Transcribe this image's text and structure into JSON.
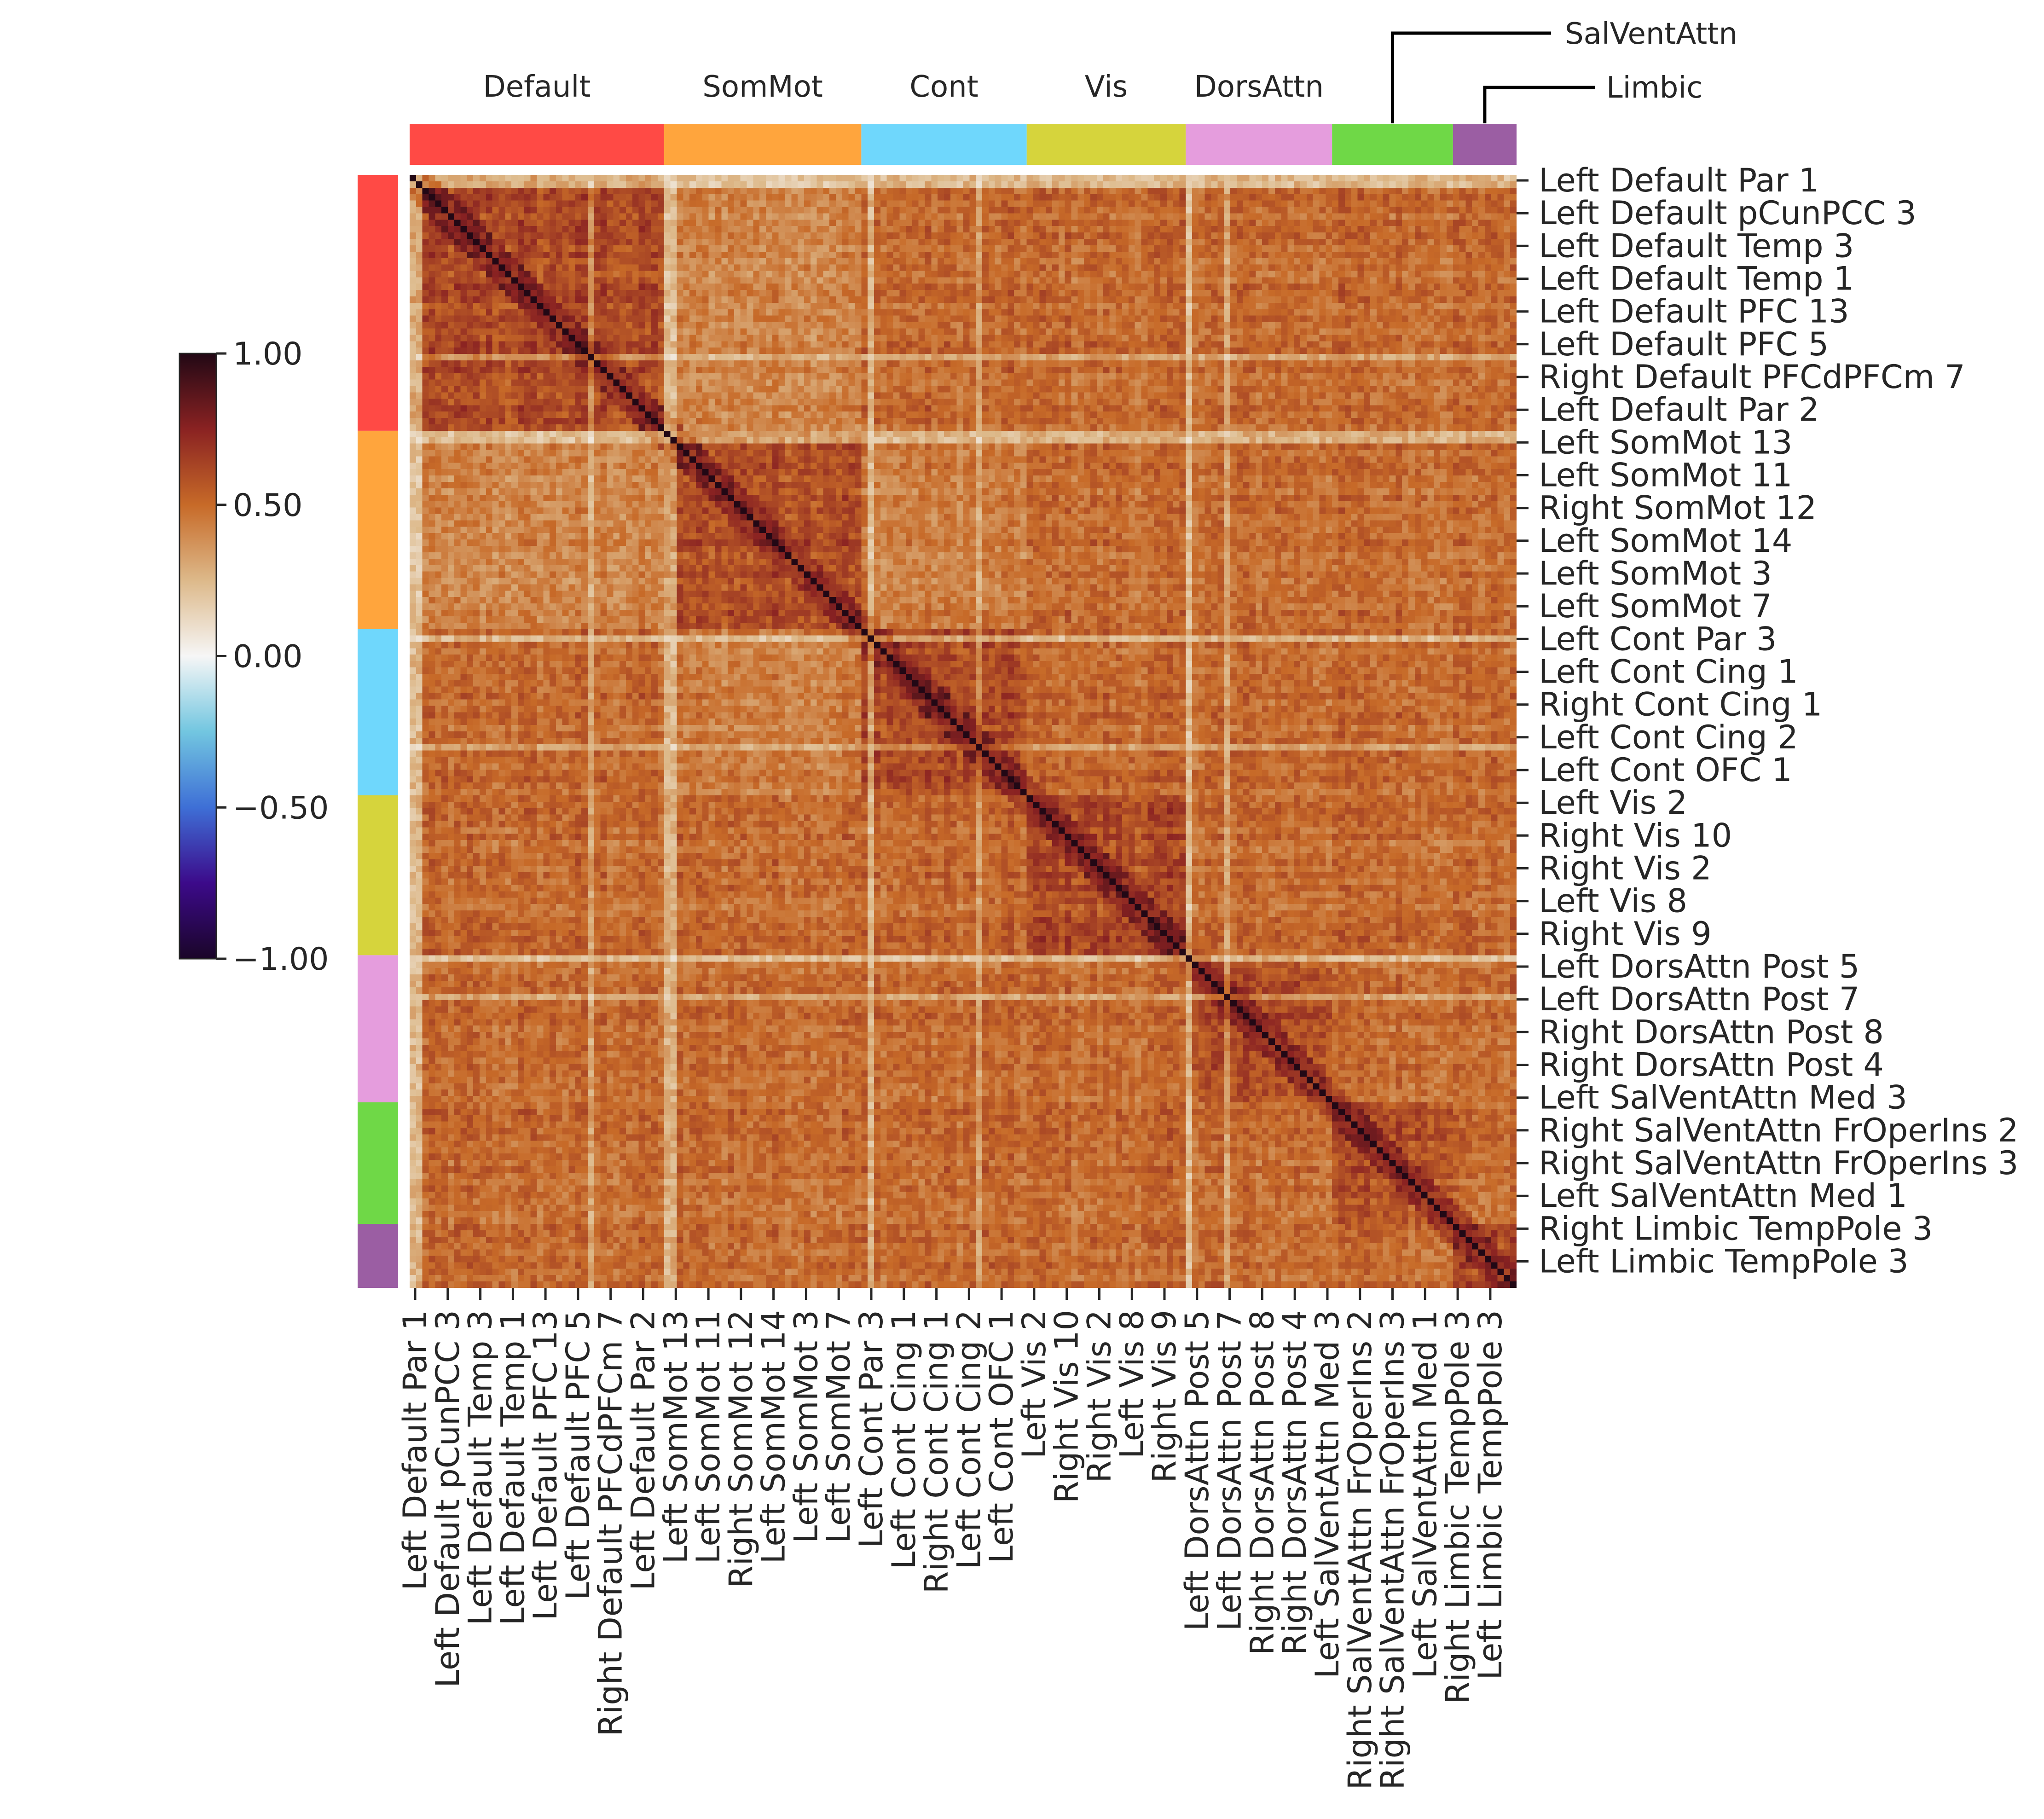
{
  "chart_data": {
    "type": "heatmap",
    "title": "",
    "colormap": {
      "vmin": -1.0,
      "vmax": 1.0,
      "stops": [
        {
          "value": -1.0,
          "color": "#1a0528"
        },
        {
          "value": -0.75,
          "color": "#3c0a8a"
        },
        {
          "value": -0.5,
          "color": "#3e6fd6"
        },
        {
          "value": -0.25,
          "color": "#72c6e0"
        },
        {
          "value": 0.0,
          "color": "#f6f6f6"
        },
        {
          "value": 0.25,
          "color": "#ddb98a"
        },
        {
          "value": 0.5,
          "color": "#c76a28"
        },
        {
          "value": 0.75,
          "color": "#8a2222"
        },
        {
          "value": 1.0,
          "color": "#220815"
        }
      ]
    },
    "colorbar": {
      "ticks": [
        1.0,
        0.5,
        0.0,
        -0.5,
        -1.0
      ],
      "tick_labels": [
        "1.00",
        "0.50",
        "0.00",
        "−0.50",
        "−1.00"
      ]
    },
    "networks": [
      {
        "name": "Default",
        "color": "#ff4a45",
        "count": 40
      },
      {
        "name": "SomMot",
        "color": "#ffa53d",
        "count": 31
      },
      {
        "name": "Cont",
        "color": "#6fd7fc",
        "count": 26
      },
      {
        "name": "Vis",
        "color": "#d6d43c",
        "count": 25
      },
      {
        "name": "DorsAttn",
        "color": "#e59ddd",
        "count": 23
      },
      {
        "name": "SalVentAttn",
        "color": "#6fd847",
        "count": 19
      },
      {
        "name": "Limbic",
        "color": "#9b5ea3",
        "count": 10
      }
    ],
    "row_labels": [
      "Left Default Par 1",
      "Left Default pCunPCC 3",
      "Left Default Temp 3",
      "Left Default Temp 1",
      "Left Default PFC 13",
      "Left Default PFC 5",
      "Right Default PFCdPFCm 7",
      "Left Default Par 2",
      "Left SomMot 13",
      "Left SomMot 11",
      "Right SomMot 12",
      "Left SomMot 14",
      "Left SomMot 3",
      "Left SomMot 7",
      "Left Cont Par 3",
      "Left Cont Cing 1",
      "Right Cont Cing 1",
      "Left Cont Cing 2",
      "Left Cont OFC 1",
      "Left Vis 2",
      "Right Vis 10",
      "Right Vis 2",
      "Left Vis 8",
      "Right Vis 9",
      "Left DorsAttn Post 5",
      "Left DorsAttn Post 7",
      "Right DorsAttn Post 8",
      "Right DorsAttn Post 4",
      "Left SalVentAttn Med 3",
      "Right SalVentAttn FrOperIns 2",
      "Right SalVentAttn FrOperIns 3",
      "Left SalVentAttn Med 1",
      "Right Limbic TempPole 3",
      "Left Limbic TempPole 3"
    ],
    "col_labels": [
      "Left Default Par 1",
      "Left Default pCunPCC 3",
      "Left Default Temp 3",
      "Left Default Temp 1",
      "Left Default PFC 13",
      "Left Default PFC 5",
      "Right Default PFCdPFCm 7",
      "Left Default Par 2",
      "Left SomMot 13",
      "Left SomMot 11",
      "Right SomMot 12",
      "Left SomMot 14",
      "Left SomMot 3",
      "Left SomMot 7",
      "Left Cont Par 3",
      "Left Cont Cing 1",
      "Right Cont Cing 1",
      "Left Cont Cing 2",
      "Left Cont OFC 1",
      "Left Vis 2",
      "Right Vis 10",
      "Right Vis 2",
      "Left Vis 8",
      "Right Vis 9",
      "Left DorsAttn Post 5",
      "Left DorsAttn Post 7",
      "Right DorsAttn Post 8",
      "Right DorsAttn Post 4",
      "Left SalVentAttn Med 3",
      "Right SalVentAttn FrOperIns 2",
      "Right SalVentAttn FrOperIns 3",
      "Left SalVentAttn Med 1",
      "Right Limbic TempPole 3",
      "Left Limbic TempPole 3"
    ],
    "matrix_size": 174,
    "matrix_summary": {
      "diagonal": 1.0,
      "typical_within_network": 0.6,
      "typical_between_network": 0.5,
      "low_correlation_stripes": 0.1
    }
  }
}
